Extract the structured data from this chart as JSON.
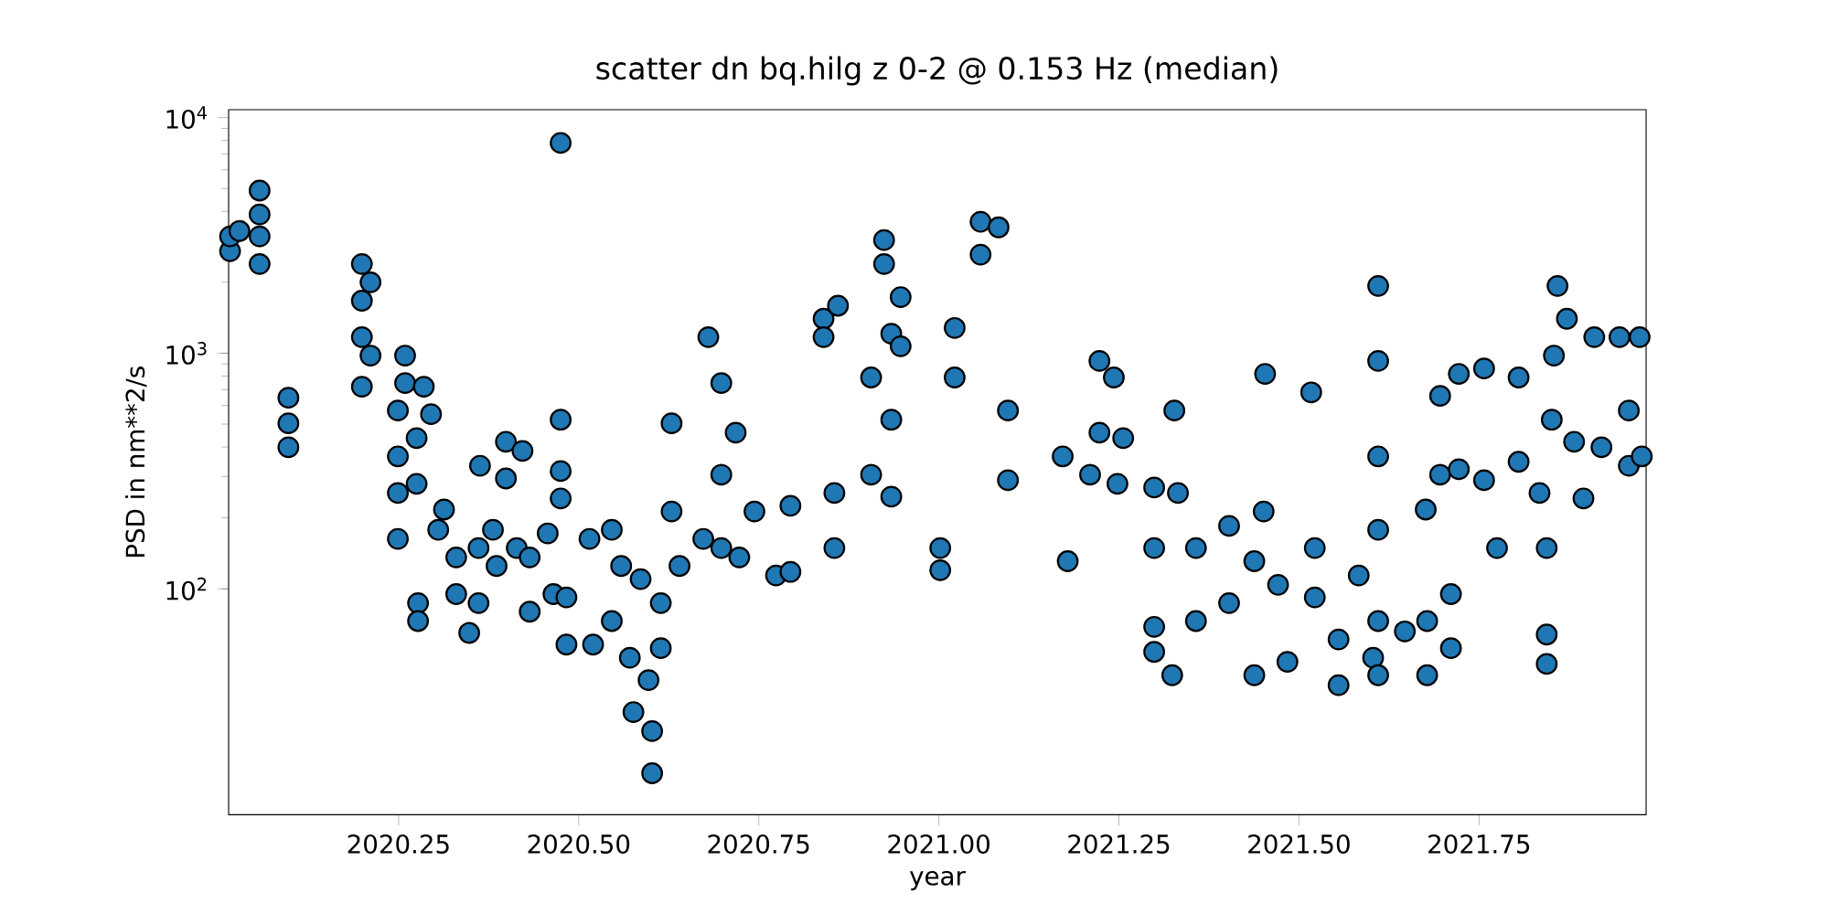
{
  "chart_data": {
    "type": "scatter",
    "title": "scatter dn bq.hilg z 0-2 @ 0.153 Hz (median)",
    "xlabel": "year",
    "ylabel": "PSD in nm**2/s",
    "log": "y",
    "marker": "circle",
    "xlim": [
      2020.014,
      2021.982
    ],
    "ylim": [
      11,
      10800
    ],
    "xticks": [
      {
        "value": 2020.25,
        "label": "2020.25"
      },
      {
        "value": 2020.5,
        "label": "2020.50"
      },
      {
        "value": 2020.75,
        "label": "2020.75"
      },
      {
        "value": 2021.0,
        "label": "2021.00"
      },
      {
        "value": 2021.25,
        "label": "2021.25"
      },
      {
        "value": 2021.5,
        "label": "2021.50"
      },
      {
        "value": 2021.75,
        "label": "2021.75"
      }
    ],
    "yticks": [
      {
        "value": 100,
        "label": "10$^{2}$"
      },
      {
        "value": 1000,
        "label": "10$^{3}$"
      },
      {
        "value": 10000,
        "label": "10$^{4}$"
      }
    ],
    "series": [
      {
        "color": "#1f77b4",
        "x": [
          2020.016,
          2020.016,
          2020.029,
          2020.057,
          2020.057,
          2020.057,
          2020.057,
          2020.097,
          2020.097,
          2020.097,
          2020.199,
          2020.199,
          2020.199,
          2020.199,
          2020.211,
          2020.211,
          2020.249,
          2020.249,
          2020.249,
          2020.249,
          2020.259,
          2020.259,
          2020.275,
          2020.275,
          2020.277,
          2020.277,
          2020.285,
          2020.295,
          2020.305,
          2020.313,
          2020.33,
          2020.33,
          2020.348,
          2020.361,
          2020.361,
          2020.363,
          2020.381,
          2020.386,
          2020.399,
          2020.399,
          2020.414,
          2020.422,
          2020.432,
          2020.432,
          2020.457,
          2020.465,
          2020.475,
          2020.475,
          2020.475,
          2020.483,
          2020.483,
          2020.515,
          2020.52,
          2020.546,
          2020.546,
          2020.559,
          2020.571,
          2020.576,
          2020.586,
          2020.597,
          2020.602,
          2020.602,
          2020.614,
          2020.614,
          2020.629,
          2020.629,
          2020.64,
          2020.673,
          2020.68,
          2020.698,
          2020.698,
          2020.698,
          2020.718,
          2020.723,
          2020.744,
          2020.774,
          2020.794,
          2020.794,
          2020.84,
          2020.84,
          2020.855,
          2020.855,
          2020.86,
          2020.906,
          2020.906,
          2020.924,
          2020.924,
          2020.934,
          2020.934,
          2020.934,
          2020.947,
          2020.947,
          2021.002,
          2021.002,
          2021.022,
          2021.022,
          2021.058,
          2021.058,
          2021.083,
          2021.096,
          2021.096,
          2021.172,
          2021.179,
          2021.21,
          2021.223,
          2021.223,
          2021.243,
          2021.248,
          2021.256,
          2021.299,
          2021.299,
          2021.299,
          2021.299,
          2021.324,
          2021.327,
          2021.332,
          2021.357,
          2021.357,
          2021.403,
          2021.403,
          2021.438,
          2021.438,
          2021.453,
          2021.451,
          2021.471,
          2021.484,
          2021.517,
          2021.522,
          2021.522,
          2021.555,
          2021.555,
          2021.583,
          2021.603,
          2021.61,
          2021.61,
          2021.61,
          2021.61,
          2021.61,
          2021.61,
          2021.647,
          2021.678,
          2021.678,
          2021.676,
          2021.696,
          2021.696,
          2021.711,
          2021.711,
          2021.722,
          2021.722,
          2021.757,
          2021.757,
          2021.775,
          2021.805,
          2021.805,
          2021.834,
          2021.844,
          2021.844,
          2021.844,
          2021.859,
          2021.854,
          2021.851,
          2021.872,
          2021.882,
          2021.895,
          2021.91,
          2021.92,
          2021.945,
          2021.958,
          2021.958,
          2021.973,
          2021.976,
          2020.475
        ],
        "values": [
          2710,
          3130,
          3300,
          4900,
          3880,
          3130,
          2390,
          647,
          504,
          399,
          2390,
          1670,
          1170,
          721,
          2000,
          977,
          571,
          365,
          255,
          163,
          977,
          747,
          436,
          279,
          87,
          73,
          721,
          551,
          178,
          217,
          136,
          95,
          65,
          149,
          87,
          333,
          178,
          125,
          421,
          294,
          149,
          385,
          136,
          80,
          172,
          95,
          522,
          316,
          242,
          92,
          58,
          163,
          58,
          178,
          73,
          125,
          51,
          30,
          110,
          41,
          24.9,
          16.5,
          87,
          56,
          504,
          213,
          125,
          163,
          1170,
          747,
          305,
          149,
          460,
          136,
          213,
          114,
          225,
          118,
          1400,
          1170,
          255,
          149,
          1590,
          789,
          305,
          3020,
          2390,
          1210,
          522,
          246,
          1730,
          1070,
          149,
          120,
          1280,
          789,
          3610,
          2620,
          3420,
          571,
          289,
          365,
          131,
          305,
          927,
          460,
          789,
          279,
          436,
          269,
          149,
          69,
          54,
          43,
          571,
          255,
          149,
          73,
          185,
          87,
          131,
          43,
          817,
          213,
          104,
          49,
          682,
          149,
          92,
          61,
          39,
          114,
          51,
          1930,
          927,
          365,
          178,
          73,
          43,
          66,
          73,
          43,
          217,
          659,
          305,
          95,
          56,
          817,
          322,
          861,
          289,
          149,
          789,
          346,
          255,
          149,
          64,
          48,
          1930,
          977,
          522,
          1400,
          421,
          242,
          1170,
          399,
          1170,
          571,
          333,
          1170,
          365,
          7800
        ]
      }
    ]
  }
}
